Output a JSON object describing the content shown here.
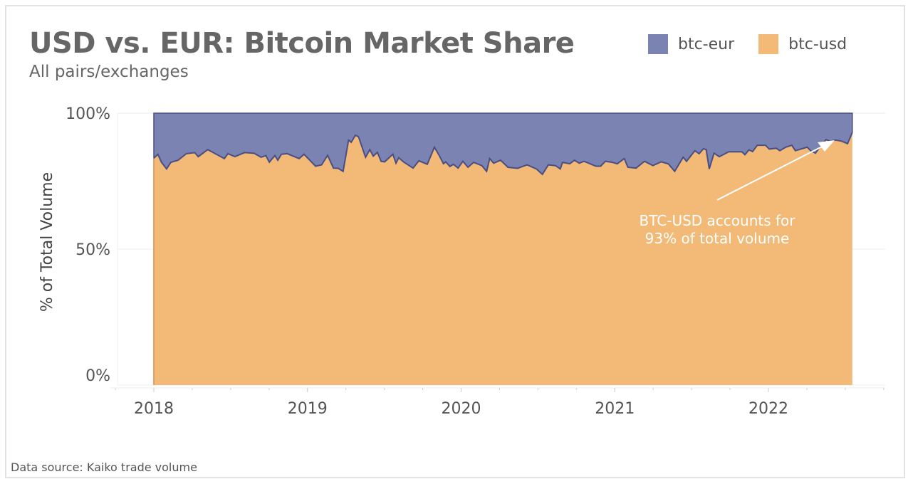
{
  "header": {
    "title": "USD vs. EUR: Bitcoin Market Share",
    "subtitle": "All pairs/exchanges"
  },
  "footer": {
    "source": "Data source: Kaiko trade volume"
  },
  "legend": [
    {
      "label": "btc-eur",
      "color": "#7b83b3"
    },
    {
      "label": "btc-usd",
      "color": "#f2b977"
    }
  ],
  "chart_data": {
    "type": "area",
    "stacked": "percent",
    "title": "USD vs. EUR: Bitcoin Market Share",
    "subtitle": "All pairs/exchanges",
    "xlabel": "",
    "ylabel": "% of Total Volume",
    "xlim": [
      2017.8,
      2022.85
    ],
    "ylim": [
      0,
      100
    ],
    "x_ticks": [
      "2018",
      "2019",
      "2020",
      "2021",
      "2022"
    ],
    "x_tick_values": [
      2018,
      2019,
      2020,
      2021,
      2022
    ],
    "y_ticks": [
      "0%",
      "50%",
      "100%"
    ],
    "y_tick_values": [
      0,
      50,
      100
    ],
    "grid": true,
    "legend_position": "top-right",
    "x": [
      2018.0,
      2018.026,
      2018.05,
      2018.083,
      2018.111,
      2018.158,
      2018.212,
      2018.266,
      2018.289,
      2018.351,
      2018.42,
      2018.459,
      2018.482,
      2018.528,
      2018.59,
      2018.652,
      2018.698,
      2018.729,
      2018.752,
      2018.788,
      2018.807,
      2018.83,
      2018.868,
      2018.946,
      2018.977,
      2019.053,
      2019.092,
      2019.131,
      2019.169,
      2019.2,
      2019.232,
      2019.267,
      2019.285,
      2019.312,
      2019.332,
      2019.378,
      2019.406,
      2019.428,
      2019.455,
      2019.479,
      2019.502,
      2019.556,
      2019.576,
      2019.594,
      2019.625,
      2019.687,
      2019.725,
      2019.78,
      2019.826,
      2019.857,
      2019.885,
      2019.9,
      2019.927,
      2019.95,
      2019.98,
      2020.011,
      2020.045,
      2020.081,
      2020.135,
      2020.166,
      2020.186,
      2020.212,
      2020.257,
      2020.305,
      2020.367,
      2020.429,
      2020.49,
      2020.529,
      2020.568,
      2020.614,
      2020.645,
      2020.66,
      2020.707,
      2020.738,
      2020.769,
      2020.8,
      2020.877,
      2020.908,
      2020.939,
      2020.985,
      2021.016,
      2021.062,
      2021.085,
      2021.139,
      2021.193,
      2021.248,
      2021.302,
      2021.348,
      2021.39,
      2021.445,
      2021.467,
      2021.521,
      2021.549,
      2021.577,
      2021.595,
      2021.615,
      2021.646,
      2021.68,
      2021.742,
      2021.827,
      2021.847,
      2021.873,
      2021.897,
      2021.927,
      2021.981,
      2022.005,
      2022.051,
      2022.074,
      2022.113,
      2022.152,
      2022.175,
      2022.252,
      2022.275,
      2022.306,
      2022.329,
      2022.375,
      2022.399,
      2022.437,
      2022.476,
      2022.515,
      2022.546
    ],
    "series": [
      {
        "name": "btc-usd",
        "color": "#f2b977",
        "values": [
          83.4,
          84.9,
          81.9,
          79.5,
          81.9,
          82.7,
          85.1,
          85.5,
          84.0,
          86.6,
          84.5,
          83.3,
          85.1,
          84.0,
          85.5,
          85.3,
          83.8,
          84.4,
          82.0,
          84.4,
          82.7,
          84.9,
          85.1,
          83.3,
          84.9,
          80.5,
          81.0,
          84.5,
          79.8,
          79.7,
          78.6,
          90.1,
          89.3,
          91.9,
          91.3,
          83.8,
          86.6,
          84.2,
          85.6,
          82.3,
          82.1,
          84.9,
          81.6,
          83.6,
          82.1,
          79.8,
          82.5,
          81.2,
          87.5,
          84.5,
          81.4,
          82.1,
          80.4,
          81.2,
          79.8,
          82.3,
          80.1,
          81.9,
          80.7,
          78.6,
          83.3,
          81.6,
          82.7,
          80.1,
          79.7,
          81.0,
          79.5,
          77.5,
          81.0,
          80.7,
          79.5,
          81.9,
          81.4,
          82.7,
          81.6,
          82.3,
          80.5,
          80.5,
          82.3,
          81.9,
          81.4,
          83.3,
          80.1,
          79.8,
          82.3,
          80.7,
          82.1,
          81.4,
          78.6,
          83.8,
          82.3,
          86.2,
          85.1,
          86.9,
          86.6,
          79.5,
          85.3,
          84.0,
          85.8,
          85.8,
          84.7,
          86.5,
          85.9,
          88.2,
          88.2,
          86.8,
          87.1,
          86.2,
          87.5,
          88.2,
          86.2,
          87.5,
          86.2,
          85.3,
          87.1,
          90.3,
          89.7,
          90.1,
          89.7,
          88.8,
          92.9
        ]
      },
      {
        "name": "btc-eur",
        "color": "#7b83b3",
        "values_rule": "100 minus btc-usd"
      }
    ],
    "annotation": {
      "lines": [
        "BTC-USD accounts for",
        "93% of total volume"
      ],
      "color": "#ffffff"
    }
  }
}
